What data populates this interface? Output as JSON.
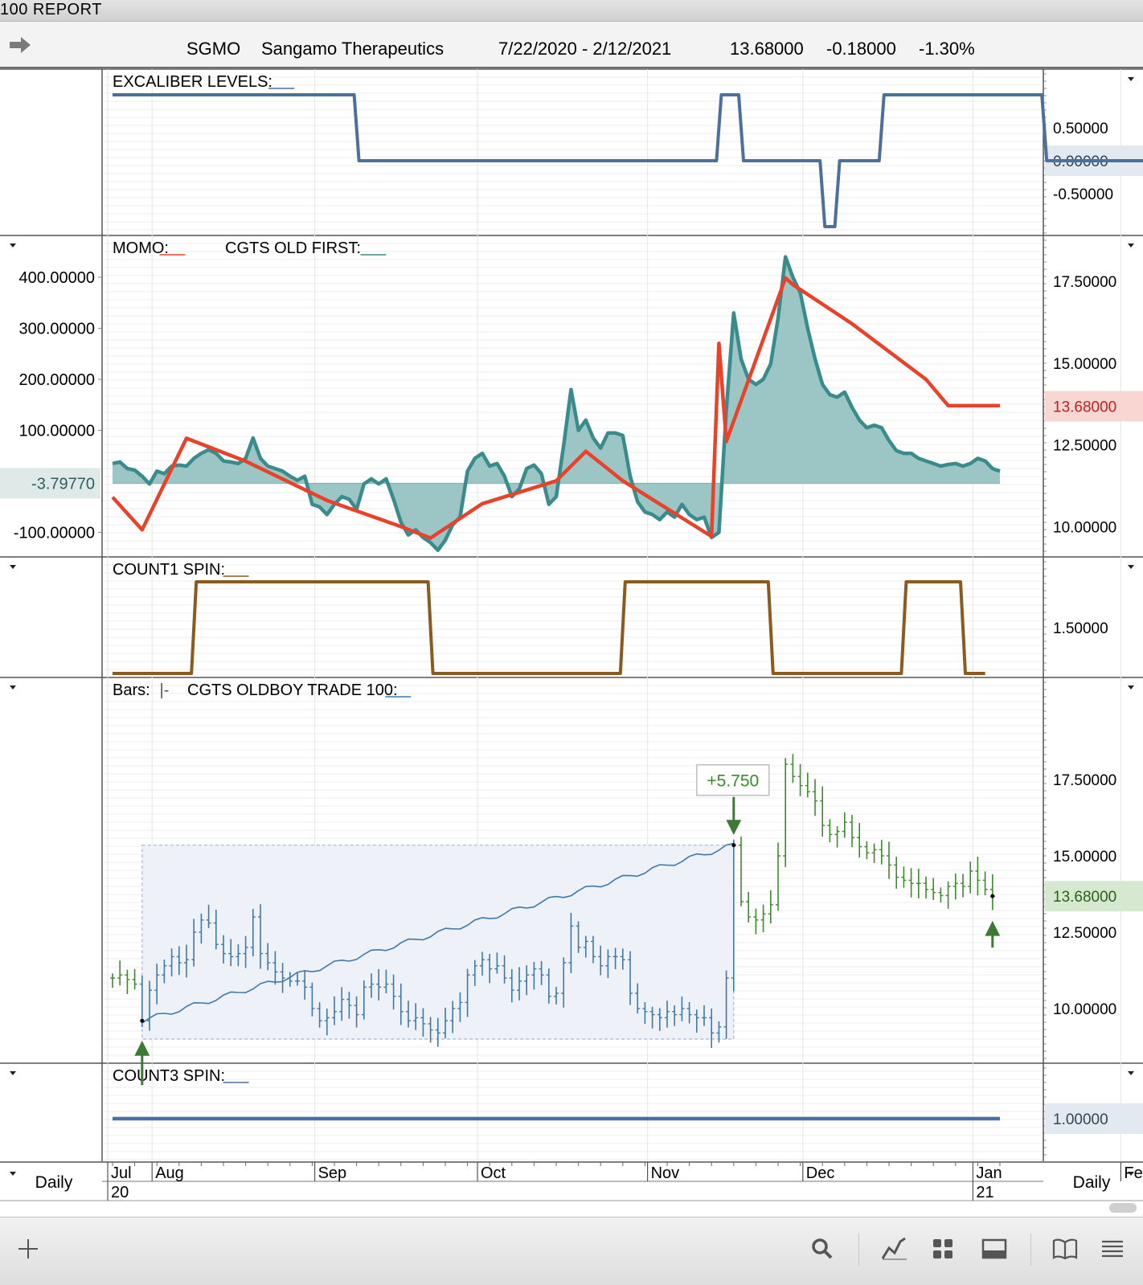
{
  "window": {
    "title": "100  REPORT"
  },
  "header": {
    "symbol": "SGMO",
    "company": "Sangamo Therapeutics",
    "date_range": "7/22/2020 - 2/12/2021",
    "last": "13.68000",
    "change": "-0.18000",
    "change_pct": "-1.30%"
  },
  "timeframe": "Daily",
  "months": [
    {
      "label": "Jul",
      "year": "20",
      "idx": 0
    },
    {
      "label": "Aug",
      "year": "",
      "idx": 6
    },
    {
      "label": "Sep",
      "year": "",
      "idx": 28
    },
    {
      "label": "Oct",
      "year": "",
      "idx": 50
    },
    {
      "label": "Nov",
      "year": "",
      "idx": 73
    },
    {
      "label": "Dec",
      "year": "",
      "idx": 94
    },
    {
      "label": "Jan",
      "year": "21",
      "idx": 117
    },
    {
      "label": "Feb",
      "year": "",
      "idx": 137
    }
  ],
  "chart_data": [
    {
      "type": "line",
      "title": "EXCALIBER LEVELS:",
      "ylim": [
        -1,
        1
      ],
      "right_ticks": [
        "0.50000",
        "0.00000",
        "-0.50000"
      ],
      "right_tick_values": [
        0.5,
        0,
        -0.5
      ],
      "highlight": {
        "value": 0,
        "label": "0.00000",
        "color": "#e3e9f1"
      },
      "series": [
        {
          "color": "#4d6f9c",
          "steps": [
            [
              0,
              1
            ],
            [
              33,
              0
            ],
            [
              82,
              1
            ],
            [
              85,
              0
            ],
            [
              96,
              -1
            ],
            [
              98,
              0
            ],
            [
              104,
              1
            ],
            [
              126,
              0
            ],
            [
              148,
              0
            ]
          ]
        }
      ]
    },
    {
      "type": "area",
      "title": "MOMO:",
      "title2": "CGTS OLD FIRST:",
      "left_ylim": [
        -145,
        455
      ],
      "right_ylim": [
        9.1,
        18.4
      ],
      "left_ticks": [
        "400.00000",
        "300.00000",
        "200.00000",
        "100.00000",
        "-100.00000"
      ],
      "left_tick_values": [
        400,
        300,
        200,
        100,
        -100
      ],
      "right_ticks": [
        "17.50000",
        "15.00000",
        "12.50000",
        "10.00000"
      ],
      "right_tick_values": [
        17.5,
        15,
        12.5,
        10
      ],
      "left_highlight": {
        "value": -3.7977,
        "label": "-3.79770",
        "color": "#dfe9e8"
      },
      "right_highlight": {
        "value": 13.68,
        "label": "13.68000",
        "color": "#f8d6d1"
      },
      "series": [
        {
          "name": "CGTS OLD FIRST",
          "color": "#3a8c8c",
          "fill": "#9cc6c5",
          "baseline": -3.7977,
          "points": [
            [
              0,
              35
            ],
            [
              1,
              38
            ],
            [
              2,
              25
            ],
            [
              3,
              22
            ],
            [
              4,
              10
            ],
            [
              5,
              -5
            ],
            [
              6,
              20
            ],
            [
              7,
              15
            ],
            [
              8,
              30
            ],
            [
              9,
              32
            ],
            [
              10,
              30
            ],
            [
              11,
              45
            ],
            [
              12,
              55
            ],
            [
              13,
              62
            ],
            [
              14,
              55
            ],
            [
              15,
              40
            ],
            [
              16,
              38
            ],
            [
              17,
              35
            ],
            [
              18,
              45
            ],
            [
              19,
              85
            ],
            [
              20,
              45
            ],
            [
              21,
              30
            ],
            [
              22,
              25
            ],
            [
              23,
              20
            ],
            [
              24,
              10
            ],
            [
              25,
              2
            ],
            [
              26,
              10
            ],
            [
              27,
              -45
            ],
            [
              28,
              -50
            ],
            [
              29,
              -65
            ],
            [
              30,
              -45
            ],
            [
              31,
              -30
            ],
            [
              32,
              -35
            ],
            [
              33,
              -55
            ],
            [
              34,
              -5
            ],
            [
              35,
              5
            ],
            [
              36,
              -5
            ],
            [
              37,
              5
            ],
            [
              38,
              -35
            ],
            [
              39,
              -80
            ],
            [
              40,
              -105
            ],
            [
              41,
              -95
            ],
            [
              42,
              -110
            ],
            [
              43,
              -120
            ],
            [
              44,
              -135
            ],
            [
              45,
              -115
            ],
            [
              46,
              -85
            ],
            [
              47,
              -70
            ],
            [
              48,
              20
            ],
            [
              49,
              45
            ],
            [
              50,
              55
            ],
            [
              51,
              30
            ],
            [
              52,
              35
            ],
            [
              53,
              10
            ],
            [
              54,
              -30
            ],
            [
              55,
              -15
            ],
            [
              56,
              25
            ],
            [
              57,
              32
            ],
            [
              58,
              15
            ],
            [
              59,
              -45
            ],
            [
              60,
              -30
            ],
            [
              61,
              70
            ],
            [
              62,
              180
            ],
            [
              63,
              100
            ],
            [
              64,
              120
            ],
            [
              65,
              85
            ],
            [
              66,
              65
            ],
            [
              67,
              95
            ],
            [
              68,
              95
            ],
            [
              69,
              90
            ],
            [
              70,
              10
            ],
            [
              71,
              -40
            ],
            [
              72,
              -60
            ],
            [
              73,
              -65
            ],
            [
              74,
              -75
            ],
            [
              75,
              -60
            ],
            [
              76,
              -70
            ],
            [
              77,
              -45
            ],
            [
              78,
              -65
            ],
            [
              79,
              -75
            ],
            [
              80,
              -70
            ],
            [
              81,
              -110
            ],
            [
              82,
              -100
            ],
            [
              83,
              140
            ],
            [
              84,
              330
            ],
            [
              85,
              240
            ],
            [
              86,
              200
            ],
            [
              87,
              190
            ],
            [
              88,
              200
            ],
            [
              89,
              230
            ],
            [
              90,
              320
            ],
            [
              91,
              440
            ],
            [
              92,
              400
            ],
            [
              93,
              370
            ],
            [
              94,
              300
            ],
            [
              95,
              240
            ],
            [
              96,
              190
            ],
            [
              97,
              170
            ],
            [
              98,
              165
            ],
            [
              99,
              175
            ],
            [
              100,
              145
            ],
            [
              101,
              120
            ],
            [
              102,
              105
            ],
            [
              103,
              110
            ],
            [
              104,
              105
            ],
            [
              105,
              80
            ],
            [
              106,
              60
            ],
            [
              107,
              55
            ],
            [
              108,
              55
            ],
            [
              109,
              45
            ],
            [
              110,
              40
            ],
            [
              111,
              35
            ],
            [
              112,
              30
            ],
            [
              113,
              33
            ],
            [
              114,
              35
            ],
            [
              115,
              30
            ],
            [
              116,
              35
            ],
            [
              117,
              45
            ],
            [
              118,
              40
            ],
            [
              119,
              25
            ],
            [
              120,
              20
            ]
          ]
        },
        {
          "name": "MOMO",
          "color": "#e8432a",
          "axis": "right",
          "points": [
            [
              0,
              10.9
            ],
            [
              4,
              9.9
            ],
            [
              10,
              12.7
            ],
            [
              18,
              12.0
            ],
            [
              29,
              10.8
            ],
            [
              39,
              10.0
            ],
            [
              43,
              9.65
            ],
            [
              50,
              10.7
            ],
            [
              60,
              11.4
            ],
            [
              64,
              12.3
            ],
            [
              69,
              11.4
            ],
            [
              81,
              9.7
            ],
            [
              82,
              15.6
            ],
            [
              83,
              12.6
            ],
            [
              91,
              17.6
            ],
            [
              92,
              17.4
            ],
            [
              100,
              16.2
            ],
            [
              110,
              14.5
            ],
            [
              113,
              13.7
            ],
            [
              120,
              13.7
            ]
          ]
        }
      ]
    },
    {
      "type": "line",
      "title": "COUNT1 SPIN:",
      "ylim": [
        0.9,
        1.95
      ],
      "right_ticks": [
        "1.50000"
      ],
      "right_tick_values": [
        1.5
      ],
      "series": [
        {
          "color": "#8b5a1e",
          "steps": [
            [
              0,
              1
            ],
            [
              11,
              2
            ],
            [
              43,
              1
            ],
            [
              69,
              2
            ],
            [
              89,
              1
            ],
            [
              107,
              2
            ],
            [
              115,
              1
            ],
            [
              118,
              1
            ]
          ]
        }
      ]
    },
    {
      "type": "bar",
      "title": "Bars:",
      "title_suffix": "|-",
      "title2": "CGTS OLDBOY TRADE 100:",
      "ylim": [
        8.25,
        20.75
      ],
      "right_ticks": [
        "17.50000",
        "15.00000",
        "12.50000",
        "10.00000"
      ],
      "right_tick_values": [
        17.5,
        15,
        12.5,
        10
      ],
      "highlight": {
        "value": 13.68,
        "label": "13.68000",
        "color": "#d7e8d0"
      },
      "trade": {
        "entry_index": 4,
        "exit_index": 84,
        "entry_price": 9.6,
        "exit_price": 15.35,
        "profit_label": "+5.750",
        "low": 9.0
      },
      "bar_colors": {
        "in_trade": "#3f79a8",
        "out_trade": "#3f8a2e"
      },
      "series": [
        {
          "name": "price",
          "close": [
            11.0,
            11.1,
            10.95,
            10.8,
            9.6,
            10.6,
            11.1,
            11.4,
            11.7,
            11.5,
            11.6,
            12.5,
            12.9,
            12.8,
            12.1,
            11.8,
            11.7,
            11.8,
            12.0,
            13.0,
            11.8,
            11.5,
            11.2,
            11.0,
            10.9,
            10.9,
            10.7,
            10.0,
            9.6,
            9.7,
            9.9,
            10.3,
            10.1,
            9.8,
            10.7,
            10.8,
            10.7,
            10.8,
            10.4,
            9.9,
            9.6,
            9.7,
            9.5,
            9.3,
            9.2,
            9.6,
            10.0,
            10.2,
            11.1,
            11.4,
            11.6,
            11.3,
            11.4,
            11.0,
            10.6,
            10.9,
            11.1,
            11.3,
            11.1,
            10.4,
            10.5,
            11.5,
            12.7,
            12.0,
            12.2,
            11.7,
            11.4,
            11.7,
            11.7,
            11.6,
            10.5,
            10.0,
            9.9,
            9.8,
            9.7,
            9.9,
            9.8,
            10.0,
            9.8,
            9.7,
            9.7,
            9.2,
            9.4,
            11.0,
            15.35,
            13.5,
            13.0,
            12.9,
            13.1,
            13.4,
            15.0,
            18.0,
            17.6,
            17.3,
            17.1,
            16.8,
            16.0,
            15.7,
            15.8,
            16.1,
            15.6,
            15.3,
            15.1,
            15.2,
            15.0,
            14.7,
            14.3,
            14.2,
            14.1,
            14.1,
            13.9,
            13.8,
            13.7,
            14.0,
            14.1,
            14.0,
            14.5,
            14.2,
            13.9,
            13.68
          ]
        }
      ]
    },
    {
      "type": "line",
      "title": "COUNT3 SPIN:",
      "ylim": [
        0.5,
        1.5
      ],
      "right_ticks": [
        "1.00000"
      ],
      "right_tick_values": [
        1.0
      ],
      "highlight": {
        "value": 1.0,
        "label": "1.00000",
        "color": "#e3e9f1"
      },
      "series": [
        {
          "color": "#4d6f9c",
          "steps": [
            [
              0,
              1
            ],
            [
              120,
              1
            ]
          ]
        }
      ]
    }
  ]
}
